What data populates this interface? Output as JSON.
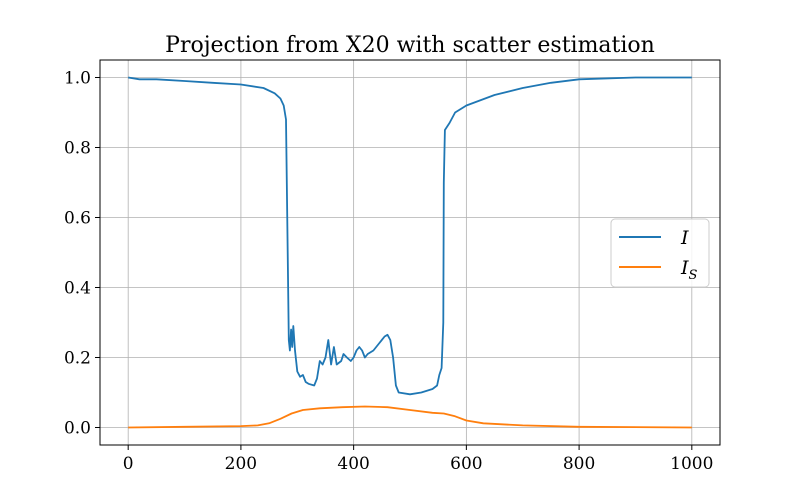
{
  "chart_data": {
    "type": "line",
    "title": "Projection from X20 with scatter estimation",
    "xlabel": "",
    "ylabel": "",
    "xlim": [
      -50,
      1050
    ],
    "ylim": [
      -0.05,
      1.05
    ],
    "xticks": [
      0,
      200,
      400,
      600,
      800,
      1000
    ],
    "xtick_labels": [
      "0",
      "200",
      "400",
      "600",
      "800",
      "1000"
    ],
    "yticks": [
      0.0,
      0.2,
      0.4,
      0.6,
      0.8,
      1.0
    ],
    "ytick_labels": [
      "0.0",
      "0.2",
      "0.4",
      "0.6",
      "0.8",
      "1.0"
    ],
    "grid": true,
    "legend_position": "center-right",
    "series": [
      {
        "name": "I",
        "color": "#1f77b4",
        "points": [
          [
            0,
            1.0
          ],
          [
            20,
            0.995
          ],
          [
            50,
            0.995
          ],
          [
            100,
            0.99
          ],
          [
            150,
            0.985
          ],
          [
            200,
            0.98
          ],
          [
            240,
            0.97
          ],
          [
            260,
            0.955
          ],
          [
            270,
            0.94
          ],
          [
            276,
            0.92
          ],
          [
            280,
            0.88
          ],
          [
            283,
            0.5
          ],
          [
            285,
            0.25
          ],
          [
            287,
            0.22
          ],
          [
            289,
            0.28
          ],
          [
            291,
            0.23
          ],
          [
            293,
            0.29
          ],
          [
            296,
            0.22
          ],
          [
            300,
            0.16
          ],
          [
            305,
            0.145
          ],
          [
            310,
            0.15
          ],
          [
            315,
            0.13
          ],
          [
            320,
            0.125
          ],
          [
            330,
            0.12
          ],
          [
            335,
            0.14
          ],
          [
            340,
            0.19
          ],
          [
            345,
            0.18
          ],
          [
            350,
            0.2
          ],
          [
            355,
            0.25
          ],
          [
            360,
            0.18
          ],
          [
            365,
            0.23
          ],
          [
            370,
            0.18
          ],
          [
            378,
            0.19
          ],
          [
            382,
            0.21
          ],
          [
            388,
            0.2
          ],
          [
            395,
            0.19
          ],
          [
            400,
            0.2
          ],
          [
            405,
            0.22
          ],
          [
            410,
            0.23
          ],
          [
            415,
            0.22
          ],
          [
            420,
            0.2
          ],
          [
            425,
            0.21
          ],
          [
            435,
            0.22
          ],
          [
            445,
            0.24
          ],
          [
            455,
            0.26
          ],
          [
            460,
            0.265
          ],
          [
            465,
            0.25
          ],
          [
            470,
            0.2
          ],
          [
            475,
            0.12
          ],
          [
            480,
            0.1
          ],
          [
            500,
            0.095
          ],
          [
            520,
            0.1
          ],
          [
            540,
            0.11
          ],
          [
            548,
            0.12
          ],
          [
            552,
            0.15
          ],
          [
            556,
            0.17
          ],
          [
            559,
            0.3
          ],
          [
            560,
            0.7
          ],
          [
            562,
            0.85
          ],
          [
            570,
            0.87
          ],
          [
            580,
            0.9
          ],
          [
            600,
            0.92
          ],
          [
            650,
            0.95
          ],
          [
            700,
            0.97
          ],
          [
            750,
            0.985
          ],
          [
            800,
            0.995
          ],
          [
            900,
            1.0
          ],
          [
            1000,
            1.0
          ]
        ]
      },
      {
        "name": "I_S",
        "color": "#ff7f0e",
        "points": [
          [
            0,
            0.0
          ],
          [
            100,
            0.002
          ],
          [
            200,
            0.004
          ],
          [
            230,
            0.006
          ],
          [
            250,
            0.012
          ],
          [
            270,
            0.025
          ],
          [
            290,
            0.04
          ],
          [
            310,
            0.05
          ],
          [
            340,
            0.055
          ],
          [
            380,
            0.058
          ],
          [
            420,
            0.06
          ],
          [
            460,
            0.058
          ],
          [
            500,
            0.05
          ],
          [
            540,
            0.042
          ],
          [
            560,
            0.04
          ],
          [
            580,
            0.032
          ],
          [
            600,
            0.02
          ],
          [
            630,
            0.012
          ],
          [
            700,
            0.006
          ],
          [
            800,
            0.002
          ],
          [
            1000,
            0.0
          ]
        ]
      }
    ]
  },
  "legend": {
    "items": [
      {
        "main": "I",
        "sub": ""
      },
      {
        "main": "I",
        "sub": "S"
      }
    ]
  }
}
